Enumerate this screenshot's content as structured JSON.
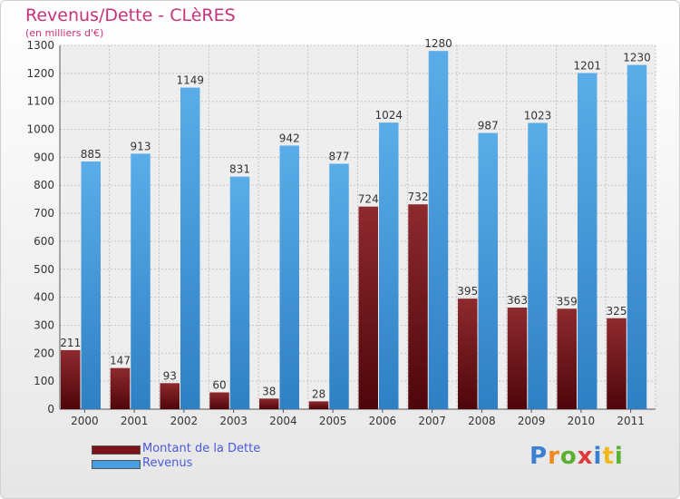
{
  "header": {
    "title": "Revenus/Dette - CLèRES",
    "subtitle": "(en milliers d'€)"
  },
  "chart_data": {
    "type": "bar",
    "categories": [
      "2000",
      "2001",
      "2002",
      "2003",
      "2004",
      "2005",
      "2006",
      "2007",
      "2008",
      "2009",
      "2010",
      "2011"
    ],
    "series": [
      {
        "name": "Montant de la Dette",
        "values": [
          211,
          147,
          93,
          60,
          38,
          28,
          724,
          732,
          395,
          363,
          359,
          325
        ],
        "color": "#7a1418"
      },
      {
        "name": "Revenus",
        "values": [
          885,
          913,
          1149,
          831,
          942,
          877,
          1024,
          1280,
          987,
          1023,
          1201,
          1230
        ],
        "color": "#4a9ee0"
      }
    ],
    "ylim": [
      0,
      1300
    ],
    "yticks": [
      0,
      100,
      200,
      300,
      400,
      500,
      600,
      700,
      800,
      900,
      1000,
      1100,
      1200,
      1300
    ],
    "grid": true,
    "legend_position": "bottom-left"
  },
  "logo": {
    "letters": [
      "P",
      "r",
      "o",
      "x",
      "i",
      "t",
      "i"
    ],
    "colors": [
      "#3a7fd0",
      "#f08a1c",
      "#5bb030",
      "#e03a3a",
      "#3a7fd0",
      "#f0b81c",
      "#5bb030"
    ]
  }
}
